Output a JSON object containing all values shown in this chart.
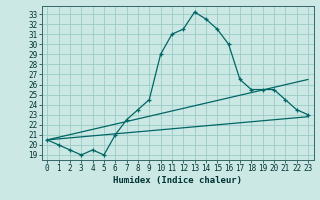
{
  "xlabel": "Humidex (Indice chaleur)",
  "bg_color": "#cce8e4",
  "grid_color": "#99ccc6",
  "line_color": "#006666",
  "xlim": [
    -0.5,
    23.5
  ],
  "ylim": [
    18.5,
    33.8
  ],
  "yticks": [
    19,
    20,
    21,
    22,
    23,
    24,
    25,
    26,
    27,
    28,
    29,
    30,
    31,
    32,
    33
  ],
  "xticks": [
    0,
    1,
    2,
    3,
    4,
    5,
    6,
    7,
    8,
    9,
    10,
    11,
    12,
    13,
    14,
    15,
    16,
    17,
    18,
    19,
    20,
    21,
    22,
    23
  ],
  "line1_x": [
    0,
    1,
    2,
    3,
    4,
    5,
    6,
    7,
    8,
    9,
    10,
    11,
    12,
    13,
    14,
    15,
    16,
    17,
    18,
    19,
    20,
    21,
    22,
    23
  ],
  "line1_y": [
    20.5,
    20.0,
    19.5,
    19.0,
    19.5,
    19.0,
    21.0,
    22.5,
    23.5,
    24.5,
    29.0,
    31.0,
    31.5,
    33.2,
    32.5,
    31.5,
    30.0,
    26.5,
    25.5,
    25.5,
    25.5,
    24.5,
    23.5,
    23.0
  ],
  "line2_x": [
    0,
    23
  ],
  "line2_y": [
    20.5,
    22.8
  ],
  "line3_x": [
    0,
    23
  ],
  "line3_y": [
    20.5,
    26.5
  ]
}
